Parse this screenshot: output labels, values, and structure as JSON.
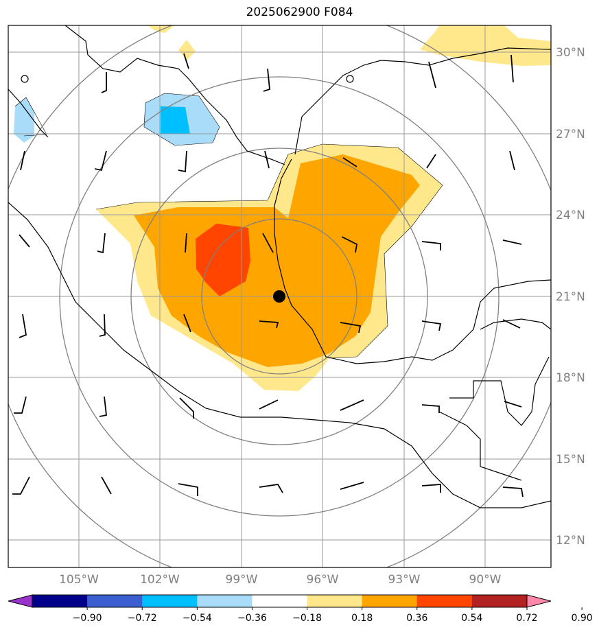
{
  "title": "2025062900 F084",
  "lat_labels": [
    "30°N",
    "27°N",
    "24°N",
    "21°N",
    "18°N",
    "15°N",
    "12°N"
  ],
  "lon_labels": [
    "105°W",
    "102°W",
    "99°W",
    "96°W",
    "93°W",
    "90°W"
  ],
  "colorbar": {
    "ticks": [
      "−0.90",
      "−0.72",
      "−0.54",
      "−0.36",
      "−0.18",
      "0.18",
      "0.36",
      "0.54",
      "0.72",
      "0.90"
    ],
    "colors": [
      "#9932cc",
      "#00008b",
      "#3b5fd0",
      "#00bfff",
      "#a8dcf8",
      "#ffffff",
      "#ffe88c",
      "#ffa500",
      "#ff4500",
      "#b22222",
      "#ff88aa"
    ]
  },
  "map": {
    "extent": {
      "lon_min": -107.6,
      "lon_max": -87.6,
      "lat_min": 11,
      "lat_max": 31
    },
    "center_marker": {
      "lon": -97.4,
      "lat": 21.0
    }
  }
}
